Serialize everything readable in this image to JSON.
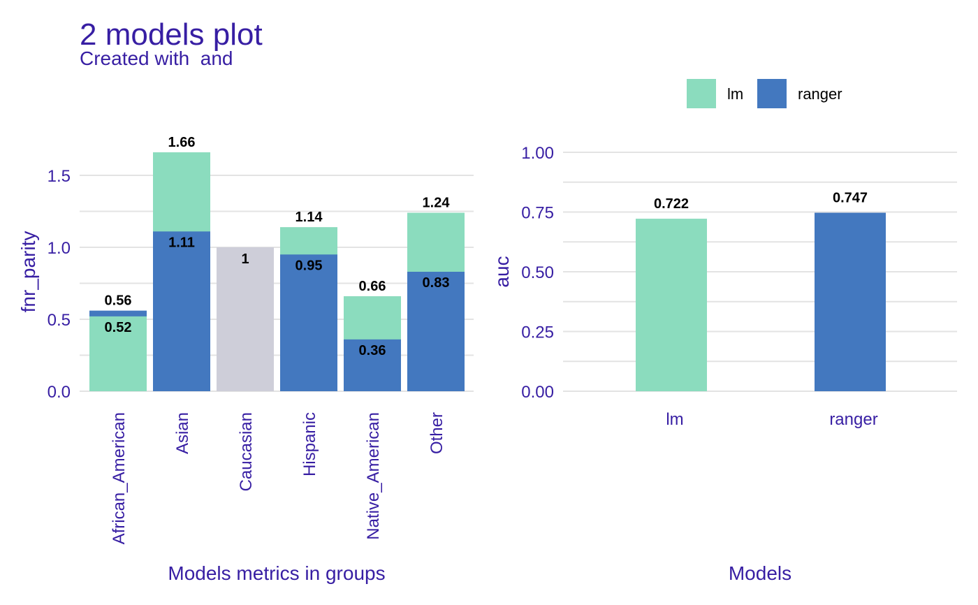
{
  "title": "2 models plot",
  "subtitle": "Created with  and",
  "legend": {
    "items": [
      {
        "label": "lm",
        "color": "#8bdcbe"
      },
      {
        "label": "ranger",
        "color": "#4378bf"
      }
    ]
  },
  "colors": {
    "text": "#371ea3",
    "grid": "#e3e3e3",
    "reference": "#ceced9",
    "label": "#000000"
  },
  "chart_data": [
    {
      "type": "bar",
      "xlabel": "Models metrics in groups",
      "ylabel": "fnr_parity",
      "ylim": [
        0,
        1.66
      ],
      "yticks": [
        0.0,
        0.5,
        1.0,
        1.5
      ],
      "ytick_labels": [
        "0.0",
        "0.5",
        "1.0",
        "1.5"
      ],
      "grid": true,
      "categories": [
        "African_American",
        "Asian",
        "Caucasian",
        "Hispanic",
        "Native_American",
        "Other"
      ],
      "reference_category": "Caucasian",
      "series": [
        {
          "name": "lm",
          "values": [
            0.52,
            1.66,
            1,
            1.14,
            0.66,
            1.24
          ]
        },
        {
          "name": "ranger",
          "values": [
            0.56,
            1.11,
            1,
            0.95,
            0.36,
            0.83
          ]
        }
      ],
      "data_labels": {
        "lm": [
          "0.52",
          "1.66",
          "1",
          "1.14",
          "0.66",
          "1.24"
        ],
        "ranger": [
          "0.56",
          "1.11",
          "1",
          "0.95",
          "0.36",
          "0.83"
        ]
      }
    },
    {
      "type": "bar",
      "xlabel": "Models",
      "ylabel": "auc",
      "ylim": [
        0,
        1.0
      ],
      "yticks": [
        0.0,
        0.25,
        0.5,
        0.75,
        1.0
      ],
      "ytick_labels": [
        "0.00",
        "0.25",
        "0.50",
        "0.75",
        "1.00"
      ],
      "grid": true,
      "categories": [
        "lm",
        "ranger"
      ],
      "values": [
        0.722,
        0.747
      ],
      "data_labels": [
        "0.722",
        "0.747"
      ]
    }
  ]
}
